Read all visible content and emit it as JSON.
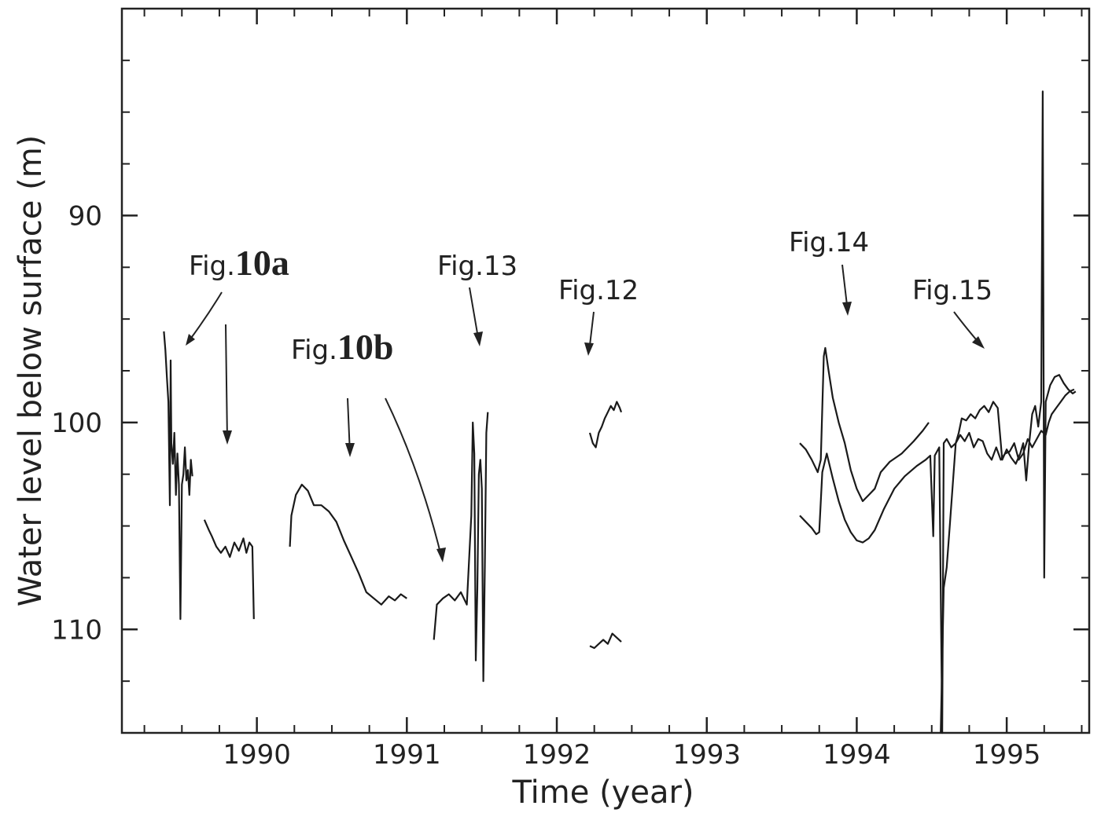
{
  "chart_data": {
    "type": "line",
    "title": "",
    "xlabel": "Time (year)",
    "ylabel": "Water level below surface (m)",
    "xlim": [
      1989.1,
      1995.55
    ],
    "ylim": [
      115,
      80
    ],
    "y_inverted": true,
    "x_ticks": [
      1990,
      1991,
      1992,
      1993,
      1994,
      1995
    ],
    "y_ticks": [
      90,
      100,
      110
    ],
    "grid": false,
    "legend": "none",
    "line_color": "#1a1a1a",
    "series": [
      {
        "points": [
          [
            1989.38,
            95.6
          ],
          [
            1989.39,
            96.5
          ],
          [
            1989.4,
            97.8
          ],
          [
            1989.41,
            99.0
          ],
          [
            1989.42,
            104.0
          ],
          [
            1989.425,
            97.0
          ],
          [
            1989.43,
            101.0
          ],
          [
            1989.44,
            102.0
          ],
          [
            1989.45,
            100.5
          ],
          [
            1989.46,
            103.5
          ],
          [
            1989.47,
            101.5
          ],
          [
            1989.48,
            103.0
          ],
          [
            1989.49,
            109.5
          ],
          [
            1989.5,
            103.0
          ],
          [
            1989.51,
            102.5
          ],
          [
            1989.52,
            101.2
          ],
          [
            1989.53,
            102.8
          ],
          [
            1989.54,
            102.3
          ],
          [
            1989.55,
            103.5
          ],
          [
            1989.56,
            101.8
          ],
          [
            1989.57,
            102.6
          ]
        ]
      },
      {
        "points": [
          [
            1989.65,
            104.7
          ],
          [
            1989.68,
            105.2
          ],
          [
            1989.7,
            105.5
          ],
          [
            1989.73,
            106.0
          ],
          [
            1989.76,
            106.3
          ],
          [
            1989.79,
            106.0
          ],
          [
            1989.82,
            106.5
          ],
          [
            1989.85,
            105.8
          ],
          [
            1989.88,
            106.2
          ],
          [
            1989.91,
            105.6
          ],
          [
            1989.93,
            106.3
          ],
          [
            1989.95,
            105.8
          ],
          [
            1989.97,
            106.0
          ],
          [
            1989.98,
            109.5
          ]
        ]
      },
      {
        "points": [
          [
            1990.22,
            106.0
          ],
          [
            1990.23,
            104.5
          ],
          [
            1990.26,
            103.5
          ],
          [
            1990.3,
            103.0
          ],
          [
            1990.34,
            103.3
          ],
          [
            1990.38,
            104.0
          ],
          [
            1990.43,
            104.0
          ],
          [
            1990.48,
            104.3
          ],
          [
            1990.53,
            104.8
          ],
          [
            1990.58,
            105.7
          ],
          [
            1990.63,
            106.5
          ],
          [
            1990.68,
            107.3
          ],
          [
            1990.73,
            108.2
          ],
          [
            1990.78,
            108.5
          ],
          [
            1990.83,
            108.8
          ],
          [
            1990.88,
            108.4
          ],
          [
            1990.92,
            108.6
          ],
          [
            1990.96,
            108.3
          ],
          [
            1991.0,
            108.5
          ]
        ]
      },
      {
        "points": [
          [
            1991.18,
            110.5
          ],
          [
            1991.2,
            108.8
          ],
          [
            1991.24,
            108.5
          ],
          [
            1991.28,
            108.3
          ],
          [
            1991.32,
            108.6
          ],
          [
            1991.36,
            108.2
          ],
          [
            1991.4,
            108.8
          ],
          [
            1991.43,
            104.5
          ],
          [
            1991.44,
            100.0
          ],
          [
            1991.45,
            101.5
          ],
          [
            1991.46,
            111.5
          ],
          [
            1991.47,
            108.0
          ],
          [
            1991.48,
            102.5
          ],
          [
            1991.49,
            101.8
          ],
          [
            1991.5,
            103.2
          ],
          [
            1991.51,
            112.5
          ],
          [
            1991.52,
            107.0
          ],
          [
            1991.53,
            100.5
          ],
          [
            1991.54,
            99.5
          ]
        ]
      },
      {
        "points": [
          [
            1992.22,
            100.5
          ],
          [
            1992.24,
            101.0
          ],
          [
            1992.26,
            101.2
          ],
          [
            1992.28,
            100.5
          ],
          [
            1992.3,
            100.2
          ],
          [
            1992.32,
            99.8
          ],
          [
            1992.34,
            99.5
          ],
          [
            1992.36,
            99.2
          ],
          [
            1992.38,
            99.4
          ],
          [
            1992.4,
            99.0
          ],
          [
            1992.42,
            99.3
          ],
          [
            1992.43,
            99.5
          ]
        ]
      },
      {
        "points": [
          [
            1992.22,
            110.8
          ],
          [
            1992.25,
            110.9
          ],
          [
            1992.28,
            110.7
          ],
          [
            1992.31,
            110.5
          ],
          [
            1992.34,
            110.7
          ],
          [
            1992.37,
            110.2
          ],
          [
            1992.4,
            110.4
          ],
          [
            1992.43,
            110.6
          ]
        ]
      },
      {
        "points": [
          [
            1993.62,
            101.0
          ],
          [
            1993.66,
            101.3
          ],
          [
            1993.7,
            101.8
          ],
          [
            1993.74,
            102.4
          ],
          [
            1993.76,
            101.8
          ],
          [
            1993.78,
            96.8
          ],
          [
            1993.79,
            96.4
          ],
          [
            1993.81,
            97.4
          ],
          [
            1993.84,
            98.8
          ],
          [
            1993.88,
            100.0
          ],
          [
            1993.92,
            101.0
          ],
          [
            1993.96,
            102.3
          ],
          [
            1994.0,
            103.2
          ],
          [
            1994.04,
            103.8
          ],
          [
            1994.08,
            103.5
          ],
          [
            1994.12,
            103.2
          ],
          [
            1994.16,
            102.4
          ],
          [
            1994.22,
            101.9
          ],
          [
            1994.3,
            101.5
          ],
          [
            1994.38,
            100.9
          ],
          [
            1994.44,
            100.4
          ],
          [
            1994.48,
            100.0
          ]
        ]
      },
      {
        "points": [
          [
            1993.62,
            104.5
          ],
          [
            1993.66,
            104.8
          ],
          [
            1993.7,
            105.1
          ],
          [
            1993.73,
            105.4
          ],
          [
            1993.75,
            105.3
          ],
          [
            1993.77,
            102.4
          ],
          [
            1993.8,
            101.5
          ],
          [
            1993.84,
            102.7
          ],
          [
            1993.88,
            103.8
          ],
          [
            1993.92,
            104.7
          ],
          [
            1993.96,
            105.3
          ],
          [
            1994.0,
            105.7
          ],
          [
            1994.04,
            105.8
          ],
          [
            1994.08,
            105.6
          ],
          [
            1994.12,
            105.2
          ],
          [
            1994.18,
            104.2
          ],
          [
            1994.25,
            103.2
          ],
          [
            1994.32,
            102.6
          ],
          [
            1994.4,
            102.1
          ],
          [
            1994.46,
            101.8
          ],
          [
            1994.49,
            101.6
          ],
          [
            1994.51,
            105.5
          ],
          [
            1994.52,
            101.6
          ],
          [
            1994.55,
            101.2
          ],
          [
            1994.57,
            115.0
          ],
          [
            1994.58,
            101.0
          ],
          [
            1994.6,
            100.8
          ],
          [
            1994.63,
            101.2
          ],
          [
            1994.66,
            101.0
          ],
          [
            1994.69,
            100.6
          ],
          [
            1994.72,
            100.9
          ],
          [
            1994.75,
            100.5
          ],
          [
            1994.78,
            101.2
          ],
          [
            1994.81,
            100.8
          ],
          [
            1994.84,
            100.9
          ],
          [
            1994.87,
            101.5
          ],
          [
            1994.9,
            101.8
          ],
          [
            1994.93,
            101.2
          ],
          [
            1994.96,
            101.8
          ],
          [
            1994.99,
            101.5
          ],
          [
            1995.02,
            101.4
          ],
          [
            1995.05,
            101.0
          ],
          [
            1995.08,
            101.8
          ],
          [
            1995.11,
            101.5
          ],
          [
            1995.14,
            100.8
          ],
          [
            1995.17,
            101.2
          ],
          [
            1995.2,
            100.8
          ],
          [
            1995.23,
            100.4
          ],
          [
            1995.26,
            100.6
          ],
          [
            1995.28,
            100.0
          ],
          [
            1995.3,
            99.6
          ],
          [
            1995.33,
            99.3
          ],
          [
            1995.36,
            99.0
          ],
          [
            1995.39,
            98.7
          ],
          [
            1995.42,
            98.5
          ],
          [
            1995.45,
            98.4
          ]
        ]
      },
      {
        "points": [
          [
            1994.56,
            115.0
          ],
          [
            1994.58,
            108.0
          ],
          [
            1994.6,
            107.0
          ],
          [
            1994.62,
            105.0
          ],
          [
            1994.64,
            103.0
          ],
          [
            1994.66,
            101.0
          ],
          [
            1994.68,
            100.5
          ],
          [
            1994.7,
            99.8
          ],
          [
            1994.73,
            99.9
          ],
          [
            1994.76,
            99.6
          ],
          [
            1994.79,
            99.8
          ],
          [
            1994.82,
            99.4
          ],
          [
            1994.85,
            99.2
          ],
          [
            1994.88,
            99.5
          ],
          [
            1994.91,
            99.0
          ],
          [
            1994.94,
            99.3
          ],
          [
            1994.97,
            101.8
          ],
          [
            1995.0,
            101.3
          ],
          [
            1995.03,
            101.7
          ],
          [
            1995.06,
            102.0
          ],
          [
            1995.09,
            101.5
          ],
          [
            1995.11,
            101.0
          ],
          [
            1995.13,
            102.8
          ],
          [
            1995.15,
            101.0
          ],
          [
            1995.17,
            99.6
          ],
          [
            1995.19,
            99.2
          ],
          [
            1995.21,
            100.2
          ],
          [
            1995.23,
            99.0
          ],
          [
            1995.24,
            84.0
          ],
          [
            1995.25,
            107.5
          ],
          [
            1995.26,
            99.0
          ],
          [
            1995.29,
            98.2
          ],
          [
            1995.32,
            97.8
          ],
          [
            1995.35,
            97.7
          ],
          [
            1995.38,
            98.1
          ],
          [
            1995.41,
            98.4
          ],
          [
            1995.44,
            98.6
          ],
          [
            1995.46,
            98.5
          ]
        ]
      }
    ],
    "annotations": [
      {
        "prefix": "Fig.",
        "label": "10a"
      },
      {
        "prefix": "Fig.",
        "label": "10b"
      },
      {
        "prefix": "Fig.",
        "label": "13"
      },
      {
        "prefix": "Fig.",
        "label": "12"
      },
      {
        "prefix": "Fig.",
        "label": "14"
      },
      {
        "prefix": "Fig.",
        "label": "15"
      }
    ]
  }
}
